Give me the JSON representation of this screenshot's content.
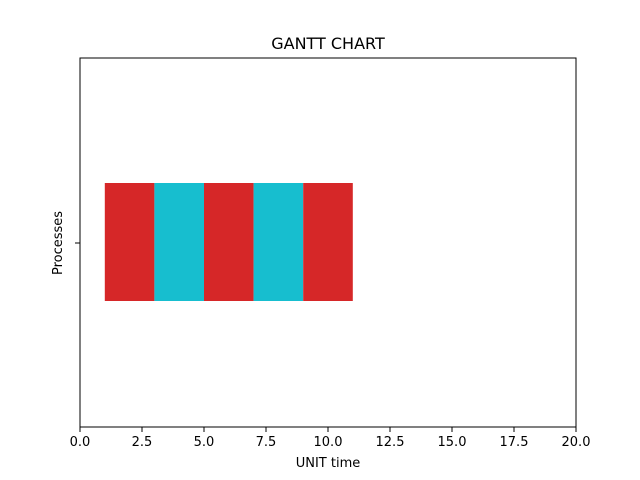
{
  "chart_data": {
    "type": "bar",
    "orientation": "horizontal",
    "title": "GANTT CHART",
    "xlabel": "UNIT time",
    "ylabel": "Processes",
    "xlim": [
      0,
      20
    ],
    "x_ticks": [
      "0.0",
      "2.5",
      "5.0",
      "7.5",
      "10.0",
      "12.5",
      "15.0",
      "17.5",
      "20.0"
    ],
    "x_tick_values": [
      0,
      2.5,
      5,
      7.5,
      10,
      12.5,
      15,
      17.5,
      20
    ],
    "grid": false,
    "segments": [
      {
        "start": 1,
        "end": 3,
        "color": "#d62728"
      },
      {
        "start": 3,
        "end": 5,
        "color": "#17becf"
      },
      {
        "start": 5,
        "end": 7,
        "color": "#d62728"
      },
      {
        "start": 7,
        "end": 9,
        "color": "#17becf"
      },
      {
        "start": 9,
        "end": 11,
        "color": "#d62728"
      }
    ]
  }
}
